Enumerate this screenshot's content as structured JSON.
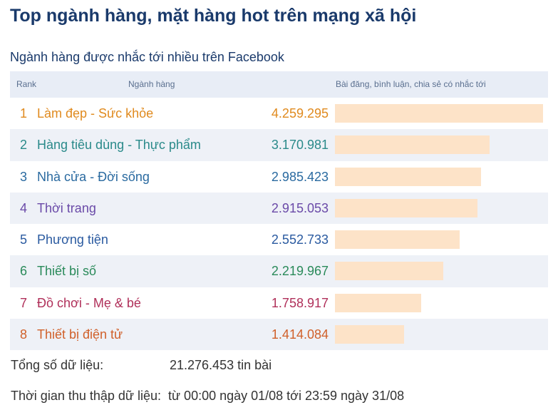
{
  "title": "Top ngành hàng, mặt hàng hot trên mạng xã hội",
  "subtitle": "Ngành hàng được nhắc tới nhiều trên Facebook",
  "headers": {
    "rank": "Rank",
    "category": "Ngành hàng",
    "mentions": "Bài đăng, bình luận, chia sẻ có nhắc tới"
  },
  "chart_data": {
    "type": "bar",
    "categories": [
      "Làm đẹp - Sức khỏe",
      "Hàng tiêu dùng - Thực phẩm",
      "Nhà cửa - Đời sống",
      "Thời trang",
      "Phương tiện",
      "Thiết bị số",
      "Đồ chơi - Mẹ & bé",
      "Thiết bị điện tử"
    ],
    "ranks": [
      "1",
      "2",
      "3",
      "4",
      "5",
      "6",
      "7",
      "8"
    ],
    "values": [
      4259295,
      3170981,
      2985423,
      2915053,
      2552733,
      2219967,
      1758917,
      1414084
    ],
    "value_labels": [
      "4.259.295",
      "3.170.981",
      "2.985.423",
      "2.915.053",
      "2.552.733",
      "2.219.967",
      "1.758.917",
      "1.414.084"
    ],
    "row_colors": [
      "#e08a1e",
      "#2a8a8a",
      "#2a6aa0",
      "#6a4aa8",
      "#2a5aa0",
      "#2a8a5a",
      "#b0305a",
      "#d0602a"
    ],
    "bar_color": "#fde3c8",
    "orientation": "horizontal"
  },
  "footer": {
    "total_label": "Tổng số dữ liệu:",
    "total_value": "21.276.453 tin bài",
    "period_label": "Thời gian thu thập dữ liệu:",
    "period_value": "từ 00:00 ngày 01/08 tới 23:59 ngày 31/08"
  }
}
